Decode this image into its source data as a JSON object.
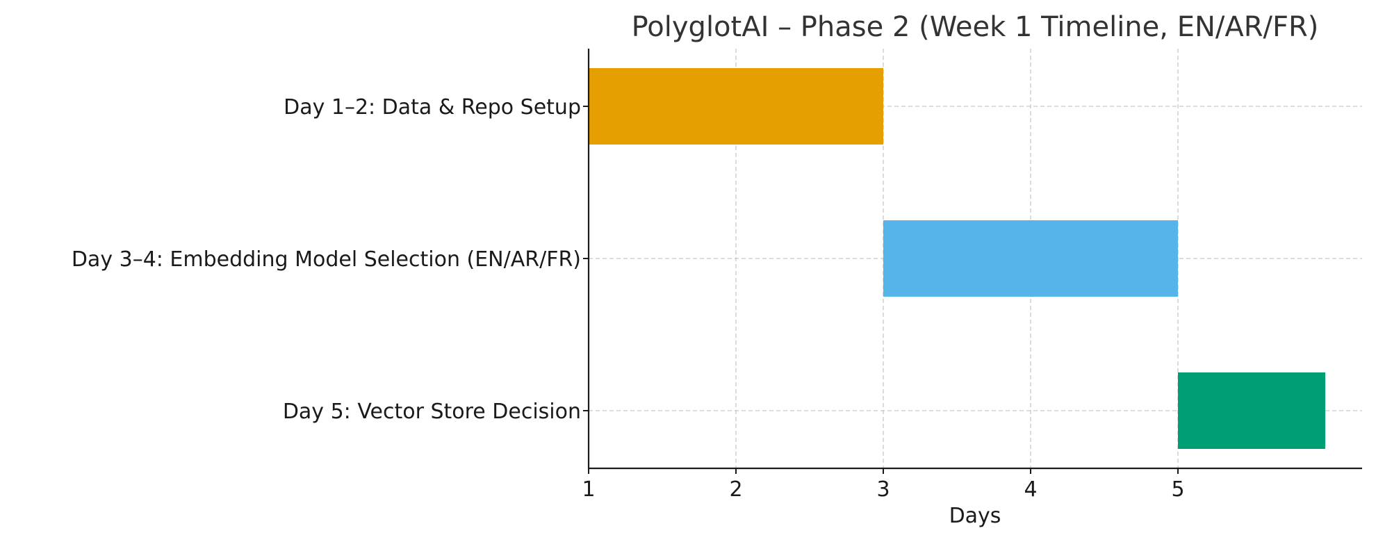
{
  "chart_data": {
    "type": "bar",
    "orientation": "horizontal",
    "title": "PolyglotAI – Phase 2 (Week 1 Timeline, EN/AR/FR)",
    "xlabel": "Days",
    "ylabel": "",
    "xlim": [
      1,
      6.25
    ],
    "xticks": [
      1,
      2,
      3,
      4,
      5
    ],
    "grid": true,
    "tasks": [
      {
        "label": "Day 1–2: Data & Repo Setup",
        "start": 1,
        "end": 3,
        "color": "#E69F00"
      },
      {
        "label": "Day 3–4: Embedding Model Selection (EN/AR/FR)",
        "start": 3,
        "end": 5,
        "color": "#56B4E9"
      },
      {
        "label": "Day 5: Vector Store Decision",
        "start": 5,
        "end": 6,
        "color": "#009E73"
      }
    ]
  }
}
